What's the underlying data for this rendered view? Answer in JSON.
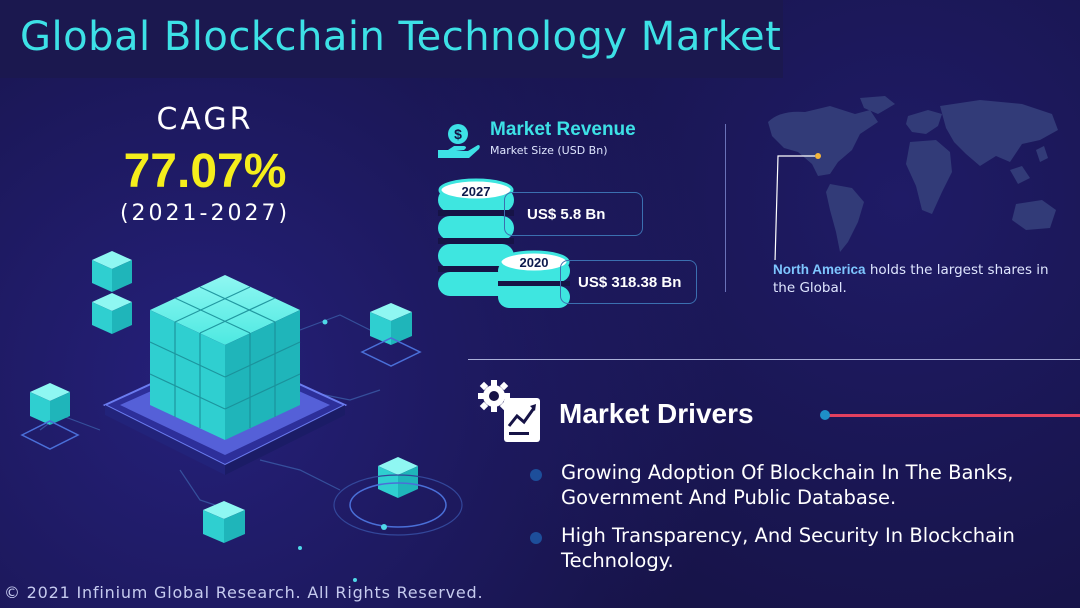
{
  "header": {
    "title": "Global Blockchain Technology Market"
  },
  "cagr": {
    "label": "CAGR",
    "value": "77.07%",
    "period": "(2021-2027)"
  },
  "revenue": {
    "title": "Market Revenue",
    "subtitle": "Market Size (USD Bn)",
    "entries": [
      {
        "year": "2027",
        "value": "US$ 5.8 Bn"
      },
      {
        "year": "2020",
        "value": "US$ 318.38 Bn"
      }
    ]
  },
  "region": {
    "highlight": "North America",
    "text": " holds the largest shares in the Global."
  },
  "drivers": {
    "title": "Market Drivers",
    "items": [
      "Growing Adoption Of Blockchain In The Banks, Government And Public Database.",
      "High Transparency, And Security In Blockchain Technology."
    ]
  },
  "footer": {
    "copyright": "© 2021 Infinium Global Research. All Rights Reserved."
  },
  "colors": {
    "background": "#161346",
    "title": "#3de1e6",
    "cagr_value": "#f5ee1c",
    "accent_line": "#e2405f",
    "cube": "#3ee6e0"
  },
  "icons": [
    "money-hand-icon",
    "gear-chart-icon",
    "world-map-icon",
    "coin-stack-icon"
  ]
}
